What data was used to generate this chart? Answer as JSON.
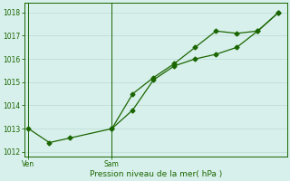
{
  "line1_x": [
    0,
    0.5,
    1.0,
    2.0,
    2.5,
    3.0,
    3.5,
    4.0,
    4.5,
    5.0,
    5.5,
    6.0
  ],
  "line1_y": [
    1013.0,
    1012.4,
    1012.6,
    1013.0,
    1014.5,
    1015.2,
    1015.8,
    1016.5,
    1017.2,
    1017.1,
    1017.2,
    1018.0
  ],
  "line2_x": [
    2.0,
    2.5,
    3.0,
    3.5,
    4.0,
    4.5,
    5.0,
    5.5,
    6.0
  ],
  "line2_y": [
    1013.0,
    1013.8,
    1015.1,
    1015.7,
    1016.0,
    1016.2,
    1016.5,
    1017.2,
    1018.0
  ],
  "color": "#1a6600",
  "background_color": "#d8f0ec",
  "grid_color": "#c0ddd8",
  "xlabel": "Pression niveau de la mer( hPa )",
  "yticks": [
    1012,
    1013,
    1014,
    1015,
    1016,
    1017,
    1018
  ],
  "xline_ven": 0.0,
  "xline_sam": 2.0,
  "ylim": [
    1011.8,
    1018.4
  ],
  "xlim": [
    -0.1,
    6.2
  ],
  "xtick_positions": [
    0.0,
    2.0
  ],
  "xtick_labels": [
    "Ven",
    "Sam"
  ]
}
